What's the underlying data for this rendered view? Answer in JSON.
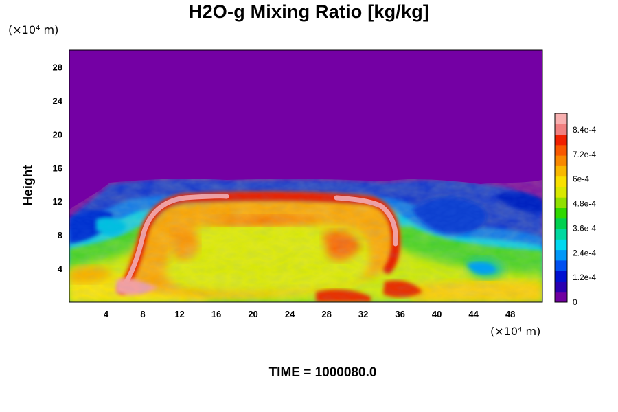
{
  "chart_data": {
    "type": "heatmap",
    "title": "H2O-g Mixing Ratio [kg/kg]",
    "ylabel": "Height",
    "xlabel": "",
    "x_unit": "(×10⁴ m)",
    "y_unit": "(×10⁴ m)",
    "footer": "TIME = 1000080.0",
    "xlim": [
      0,
      51.5
    ],
    "ylim": [
      0,
      30
    ],
    "x_ticks": [
      4,
      8,
      12,
      16,
      20,
      24,
      28,
      32,
      36,
      40,
      44,
      48
    ],
    "y_ticks": [
      4,
      8,
      12,
      16,
      20,
      24,
      28
    ],
    "x_tick_labels": [
      "4",
      "8",
      "12",
      "16",
      "20",
      "24",
      "28",
      "32",
      "36",
      "40",
      "44",
      "48"
    ],
    "y_tick_labels": [
      "4",
      "8",
      "12",
      "16",
      "20",
      "24",
      "28"
    ],
    "colorbar": {
      "range": [
        0,
        0.00092
      ],
      "tick_values": [
        0,
        0.00012,
        0.00024,
        0.00036,
        0.00048,
        0.0006,
        0.00072,
        0.00084
      ],
      "tick_labels": [
        "0",
        "1.2e-4",
        "2.4e-4",
        "3.6e-4",
        "4.8e-4",
        "6e-4",
        "7.2e-4",
        "8.4e-4"
      ],
      "colors": [
        "#7000a0",
        "#2a00b0",
        "#0010d0",
        "#0050f0",
        "#0098f8",
        "#00d8f0",
        "#00d8a0",
        "#00d050",
        "#30d800",
        "#90e000",
        "#d8e800",
        "#f8e000",
        "#f8b800",
        "#f88800",
        "#f85800",
        "#f02000",
        "#f08080",
        "#f8b0b0"
      ]
    },
    "field_regions": [
      {
        "region": "upper atmosphere (above ~14)",
        "value": 0
      },
      {
        "region": "left boundary layer 0-10, heights 0-8",
        "value": 0.00055
      },
      {
        "region": "central convective cell 10-35, heights 0-12",
        "value": 0.00065
      },
      {
        "region": "cell outer boundary (arched ring)",
        "value": 0.0009
      },
      {
        "region": "right turbulent region 36-52, heights 0-10",
        "value": 0.00045
      },
      {
        "region": "mixing layer heights 8-14",
        "value": 0.00012
      }
    ]
  }
}
